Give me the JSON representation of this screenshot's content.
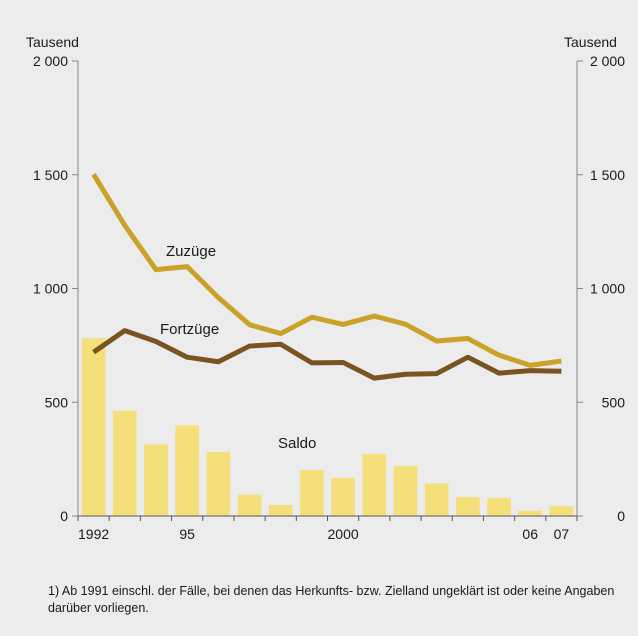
{
  "chart_data": {
    "type": "bar+line",
    "unit_left": "Tausend",
    "unit_right": "Tausend",
    "ylim": [
      0,
      2000
    ],
    "yticks": [
      0,
      500,
      1000,
      1500,
      2000
    ],
    "ytick_labels": [
      "0",
      "500",
      "1 000",
      "1 500",
      "2 000"
    ],
    "ytick_labels_right": [
      "0",
      "500",
      "1 000",
      "1 500",
      "2 000"
    ],
    "x": [
      1992,
      1993,
      1994,
      1995,
      1996,
      1997,
      1998,
      1999,
      2000,
      2001,
      2002,
      2003,
      2004,
      2005,
      2006,
      2007
    ],
    "xtick_labels": [
      {
        "year": 1992,
        "label": "1992"
      },
      {
        "year": 1995,
        "label": "95"
      },
      {
        "year": 2000,
        "label": "2000"
      },
      {
        "year": 2006,
        "label": "06"
      },
      {
        "year": 2007,
        "label": "07"
      }
    ],
    "series": [
      {
        "name": "Saldo",
        "kind": "bar",
        "color": "#f5df7a",
        "values": [
          782,
          462,
          315,
          398,
          282,
          94,
          48,
          202,
          167,
          273,
          220,
          143,
          83,
          79,
          23,
          44
        ]
      },
      {
        "name": "Zuzüge",
        "kind": "line",
        "color": "#c9a227",
        "values": [
          1502,
          1277,
          1083,
          1096,
          960,
          841,
          802,
          874,
          842,
          879,
          843,
          769,
          780,
          707,
          662,
          681
        ]
      },
      {
        "name": "Fortzüge",
        "kind": "line",
        "color": "#7a5420",
        "values": [
          720,
          815,
          767,
          698,
          678,
          747,
          755,
          673,
          675,
          606,
          623,
          626,
          698,
          628,
          639,
          636
        ]
      }
    ],
    "grid": false
  },
  "footnote": "1) Ab 1991 einschl. der Fälle, bei denen das Herkunfts- bzw. Zielland ungeklärt ist oder keine Angaben darüber vorliegen."
}
